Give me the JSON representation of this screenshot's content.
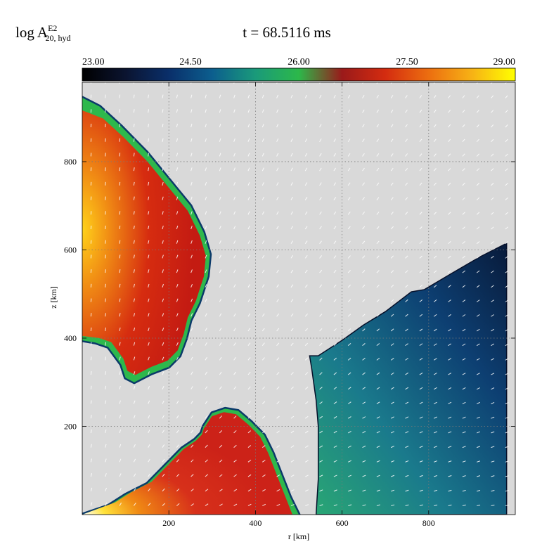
{
  "chart_data": {
    "type": "heatmap",
    "quantity_label": "log A",
    "quantity_sup": "E2",
    "quantity_sub": "20, hyd",
    "time_label": "t = 68.5116 ms",
    "xlabel": "r [km]",
    "ylabel": "z [km]",
    "xlim": [
      0,
      1000
    ],
    "ylim": [
      0,
      980
    ],
    "xticks": [
      200,
      400,
      600,
      800
    ],
    "yticks": [
      200,
      400,
      600,
      800
    ],
    "grid": true,
    "grid_style": "dotted",
    "background_color": "#d9d9d9",
    "colorbar": {
      "position": "top",
      "min": 23.0,
      "max": 29.0,
      "tick_labels": [
        "23.00",
        "24.50",
        "26.00",
        "27.50",
        "29.00"
      ],
      "colormap": [
        "#000000",
        "#0b1430",
        "#0a2f6a",
        "#0c5e8e",
        "#1a9a7a",
        "#2cb84a",
        "#9a1a1a",
        "#d42c10",
        "#ec6e10",
        "#f7b215",
        "#ffff00"
      ]
    },
    "regions": [
      {
        "name": "polar-jet-lobe",
        "level_range": [
          27.3,
          28.8
        ],
        "boundary_rz": [
          [
            0,
            945
          ],
          [
            40,
            925
          ],
          [
            90,
            880
          ],
          [
            150,
            820
          ],
          [
            200,
            760
          ],
          [
            250,
            700
          ],
          [
            280,
            640
          ],
          [
            295,
            590
          ],
          [
            290,
            540
          ],
          [
            270,
            480
          ],
          [
            250,
            440
          ],
          [
            240,
            400
          ],
          [
            225,
            360
          ],
          [
            200,
            335
          ],
          [
            160,
            320
          ],
          [
            120,
            300
          ],
          [
            100,
            310
          ],
          [
            90,
            340
          ],
          [
            60,
            380
          ],
          [
            30,
            390
          ],
          [
            0,
            395
          ]
        ]
      },
      {
        "name": "equatorial-outflow",
        "level_range": [
          27.2,
          29.0
        ],
        "boundary_rz": [
          [
            0,
            0
          ],
          [
            60,
            20
          ],
          [
            100,
            45
          ],
          [
            150,
            70
          ],
          [
            190,
            110
          ],
          [
            230,
            150
          ],
          [
            260,
            170
          ],
          [
            275,
            185
          ],
          [
            280,
            200
          ],
          [
            300,
            230
          ],
          [
            330,
            240
          ],
          [
            360,
            235
          ],
          [
            390,
            210
          ],
          [
            420,
            180
          ],
          [
            440,
            140
          ],
          [
            460,
            90
          ],
          [
            480,
            40
          ],
          [
            500,
            0
          ]
        ]
      },
      {
        "name": "shocked-shell",
        "level_range": [
          25.0,
          26.5
        ],
        "boundary_rz": [
          [
            525,
            360
          ],
          [
            545,
            360
          ],
          [
            600,
            395
          ],
          [
            650,
            430
          ],
          [
            700,
            460
          ],
          [
            760,
            505
          ],
          [
            790,
            510
          ],
          [
            850,
            545
          ],
          [
            920,
            585
          ],
          [
            980,
            615
          ],
          [
            980,
            0
          ],
          [
            540,
            0
          ],
          [
            545,
            80
          ],
          [
            545,
            200
          ],
          [
            540,
            260
          ],
          [
            530,
            330
          ]
        ]
      }
    ],
    "velocity_field": "arrows"
  }
}
